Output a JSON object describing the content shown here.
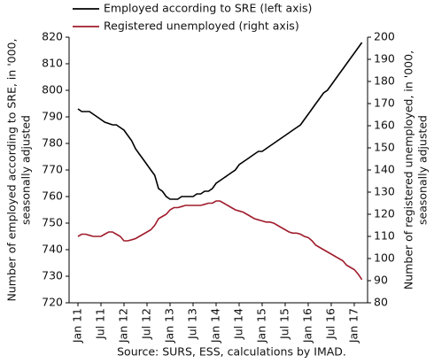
{
  "chart_data": {
    "type": "line",
    "categories": [
      "Jan 11",
      null,
      null,
      null,
      null,
      null,
      "Jul 11",
      null,
      null,
      null,
      null,
      null,
      "Jan 12",
      null,
      null,
      null,
      null,
      null,
      "Jul 12",
      null,
      null,
      null,
      null,
      null,
      "Jan 13",
      null,
      null,
      null,
      null,
      null,
      "Jul 13",
      null,
      null,
      null,
      null,
      null,
      "Jan 14",
      null,
      null,
      null,
      null,
      null,
      "Jul 14",
      null,
      null,
      null,
      null,
      null,
      "Jan 15",
      null,
      null,
      null,
      null,
      null,
      "Jul 15",
      null,
      null,
      null,
      null,
      null,
      "Jan 16",
      null,
      null,
      null,
      null,
      null,
      "Jul 16",
      null,
      null,
      null,
      null,
      null,
      "Jan 17",
      null,
      null
    ],
    "series": [
      {
        "name": "Employed according to SRE (left axis)",
        "color": "#000000",
        "values": [
          793,
          792,
          792,
          792,
          791,
          790,
          789,
          788,
          787.5,
          787,
          787,
          786,
          785,
          783,
          781,
          778,
          776,
          774,
          772,
          770,
          768,
          763,
          762,
          760,
          759,
          759,
          759,
          760,
          760,
          760,
          760,
          761,
          761,
          762,
          762,
          763,
          765,
          766,
          767,
          768,
          769,
          770,
          772,
          773,
          774,
          775,
          776,
          777,
          777,
          778,
          779,
          780,
          781,
          782,
          783,
          784,
          785,
          786,
          787,
          789,
          791,
          793,
          795,
          797,
          799,
          800,
          802,
          804,
          806,
          808,
          810,
          812,
          814,
          816,
          818
        ]
      },
      {
        "name": "Registered unemployed (right axis)",
        "color": "#a01c2c",
        "axis": "y2",
        "values": [
          110,
          111,
          111,
          110.5,
          110,
          110,
          110,
          111,
          112,
          112,
          111,
          110,
          108,
          108,
          108.5,
          109,
          110,
          111,
          112,
          113,
          115,
          118,
          119,
          120,
          122,
          123,
          123,
          123.5,
          124,
          124,
          124,
          124,
          124,
          124.5,
          125,
          125,
          126,
          126,
          125,
          124,
          123,
          122,
          121.5,
          121,
          120,
          119,
          118,
          117.5,
          117,
          116.5,
          116.5,
          116,
          115,
          114,
          113,
          112,
          111.5,
          111.5,
          111,
          110,
          109.5,
          108,
          106,
          105,
          104,
          103,
          102,
          101,
          100,
          99,
          97,
          96,
          95,
          93,
          90.5
        ]
      }
    ],
    "ylim": [
      720,
      820
    ],
    "yticks": [
      720,
      730,
      740,
      750,
      760,
      770,
      780,
      790,
      800,
      810,
      820
    ],
    "y2lim": [
      80,
      200
    ],
    "y2ticks": [
      80,
      90,
      100,
      110,
      120,
      130,
      140,
      150,
      160,
      170,
      180,
      190,
      200
    ],
    "ylabel": [
      "Number of employed according to SRE, in '000,",
      "seasonally adjusted"
    ],
    "y2label": [
      "Number of registered unemployed, in '000,",
      "seasonally adjusted"
    ],
    "source": "Source: SURS, ESS, calculations by IMAD."
  }
}
